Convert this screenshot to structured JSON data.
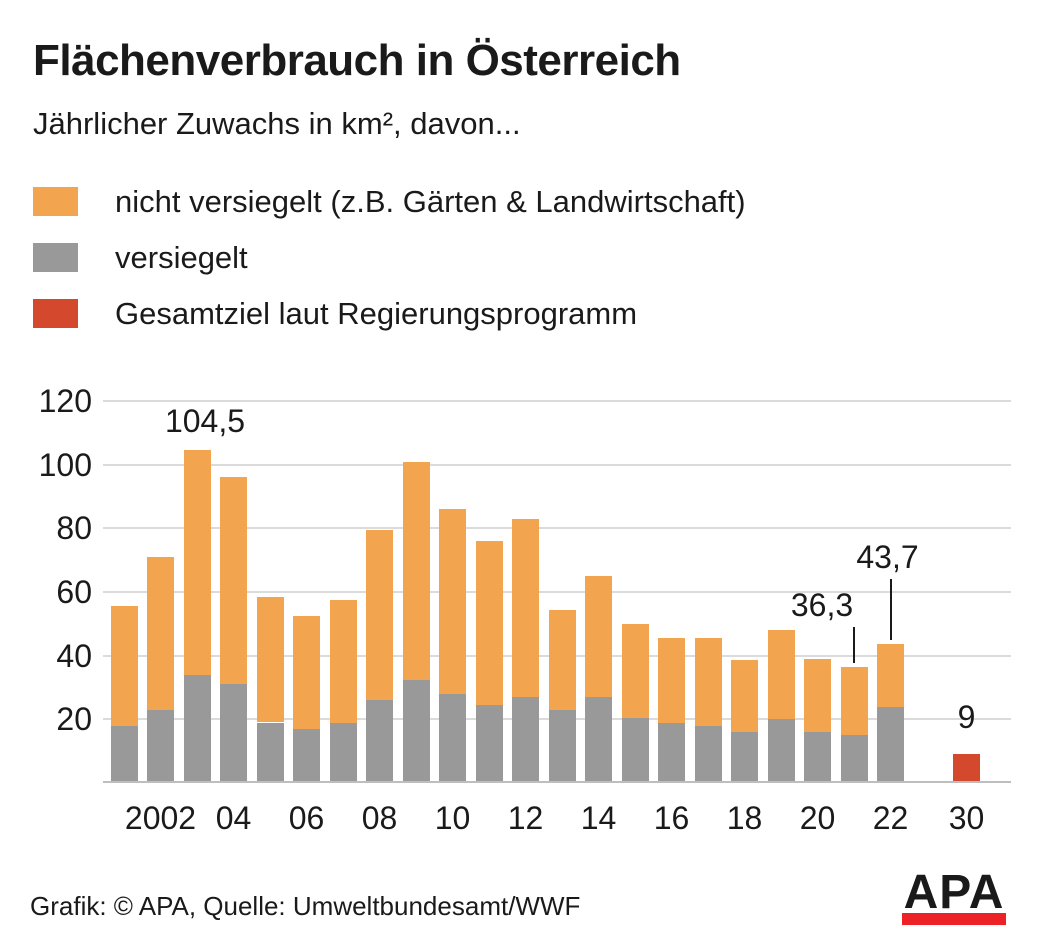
{
  "header": {
    "title": "Flächenverbrauch in Österreich",
    "subtitle": "Jährlicher Zuwachs in km², davon..."
  },
  "legend": {
    "items": [
      {
        "label": "nicht versiegelt (z.B. Gärten & Landwirtschaft)",
        "color": "#F2A54E"
      },
      {
        "label": "versiegelt",
        "color": "#999999"
      },
      {
        "label": "Gesamtziel laut Regierungsprogramm",
        "color": "#D4492E"
      }
    ]
  },
  "colors": {
    "orange": "#F2A54E",
    "gray": "#999999",
    "red": "#D4492E",
    "gridline": "#DBDBDB",
    "axis_line": "#BEBEBE",
    "text": "#1A1A1A",
    "logo_red": "#EC2227"
  },
  "chart_data": {
    "type": "bar",
    "stacked": true,
    "title": "Flächenverbrauch in Österreich",
    "subtitle": "Jährlicher Zuwachs in km², davon...",
    "ylabel": "km²",
    "categories": [
      "2001",
      "2002",
      "2003",
      "2004",
      "2005",
      "2006",
      "2007",
      "2008",
      "2009",
      "2010",
      "2011",
      "2012",
      "2013",
      "2014",
      "2015",
      "2016",
      "2017",
      "2018",
      "2019",
      "2020",
      "2021",
      "2022"
    ],
    "series": [
      {
        "name": "versiegelt",
        "color": "#999999",
        "values": [
          18,
          23,
          34,
          31,
          19,
          17,
          19,
          26,
          32.5,
          28,
          24.5,
          27,
          23,
          27,
          20.5,
          19,
          18,
          16,
          20,
          16,
          15,
          24
        ]
      },
      {
        "name": "nicht versiegelt (z.B. Gärten & Landwirtschaft)",
        "color": "#F2A54E",
        "values": [
          37.5,
          48,
          70.5,
          65,
          39.5,
          35.5,
          38.5,
          53.5,
          68.5,
          58,
          51.5,
          56,
          31.5,
          38,
          29.5,
          26.5,
          27.5,
          22.5,
          28,
          23,
          21.3,
          19.7
        ]
      }
    ],
    "totals": [
      55.5,
      71,
      104.5,
      96,
      58.5,
      52.5,
      57.5,
      79.5,
      101,
      86,
      76,
      83,
      54.5,
      65,
      50,
      45.5,
      45.5,
      38.5,
      48,
      39,
      36.3,
      43.7
    ],
    "goal_bar": {
      "category": "2030",
      "label": "Gesamtziel laut Regierungsprogramm",
      "value": 9,
      "color": "#D4492E"
    },
    "x_ticks": [
      {
        "label": "2002",
        "category": "2002"
      },
      {
        "label": "04",
        "category": "2004"
      },
      {
        "label": "06",
        "category": "2006"
      },
      {
        "label": "08",
        "category": "2008"
      },
      {
        "label": "10",
        "category": "2010"
      },
      {
        "label": "12",
        "category": "2012"
      },
      {
        "label": "14",
        "category": "2014"
      },
      {
        "label": "16",
        "category": "2016"
      },
      {
        "label": "18",
        "category": "2018"
      },
      {
        "label": "20",
        "category": "2020"
      },
      {
        "label": "22",
        "category": "2022"
      },
      {
        "label": "30",
        "category": "2030"
      }
    ],
    "y_ticks": [
      20,
      40,
      60,
      80,
      100,
      120
    ],
    "ylim": [
      0,
      124
    ],
    "grid": true,
    "legend_position": "top",
    "annotations": [
      {
        "category": "2003",
        "text": "104,5",
        "pointer": false
      },
      {
        "category": "2021",
        "text": "36,3",
        "pointer": true
      },
      {
        "category": "2022",
        "text": "43,7",
        "pointer": true
      },
      {
        "category": "2030",
        "text": "9",
        "pointer": false
      }
    ]
  },
  "footer": {
    "credit": "Grafik: © APA, Quelle: Umweltbundesamt/WWF",
    "logo_text": "APA"
  }
}
